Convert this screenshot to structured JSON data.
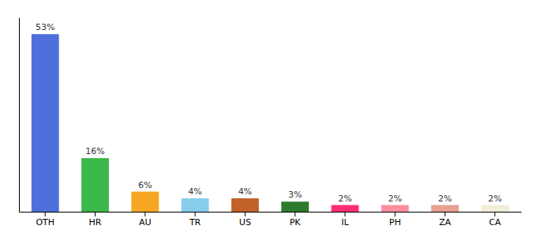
{
  "chart_data": {
    "type": "bar",
    "categories": [
      "OTH",
      "HR",
      "AU",
      "TR",
      "US",
      "PK",
      "IL",
      "PH",
      "ZA",
      "CA"
    ],
    "values": [
      53,
      16,
      6,
      4,
      4,
      3,
      2,
      2,
      2,
      2
    ],
    "value_labels": [
      "53%",
      "16%",
      "6%",
      "4%",
      "4%",
      "3%",
      "2%",
      "2%",
      "2%",
      "2%"
    ],
    "colors": [
      "#4e6fdb",
      "#3cb84a",
      "#f5a623",
      "#87ceeb",
      "#c0622a",
      "#2d7a2d",
      "#ff2d78",
      "#ff8fa0",
      "#e8a090",
      "#f0edd8"
    ],
    "ylim": [
      0,
      58
    ],
    "data_labels": true,
    "tick_labels": "x"
  }
}
